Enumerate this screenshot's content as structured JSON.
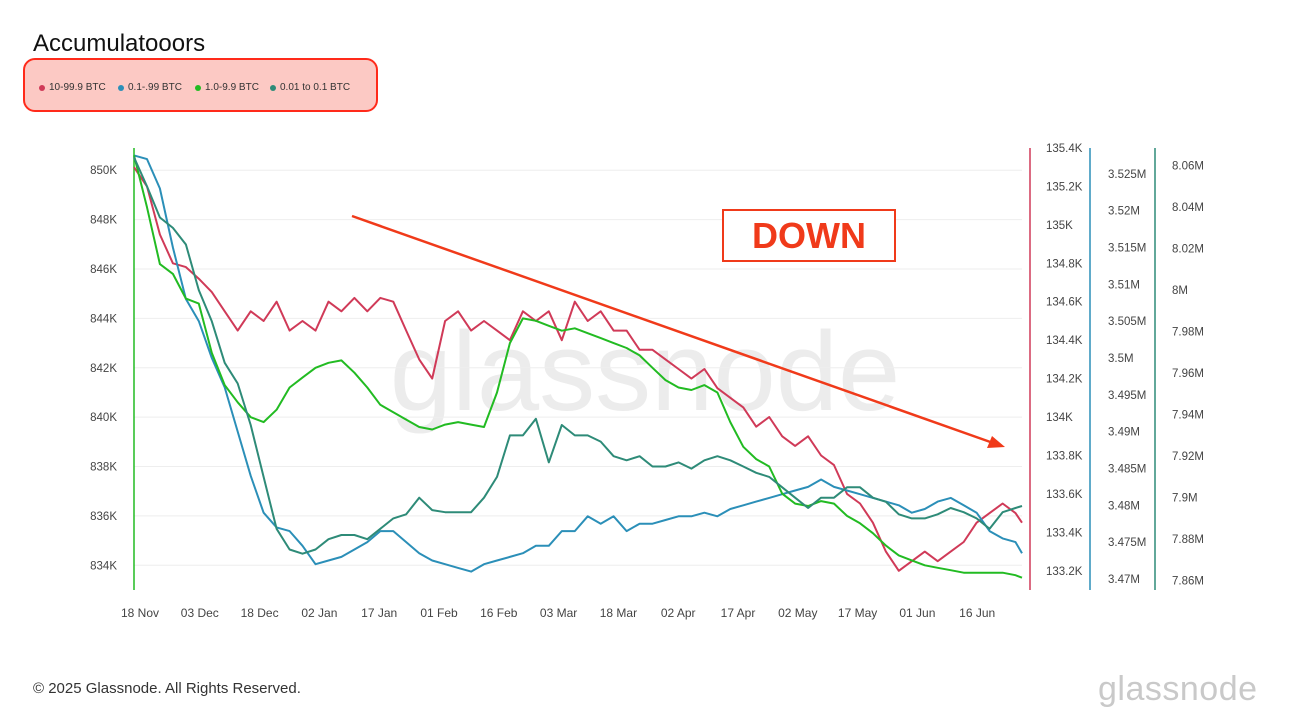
{
  "chart_data": {
    "type": "line",
    "title": "Accumulatooors",
    "x_ticks": [
      "18 Nov",
      "03 Dec",
      "18 Dec",
      "02 Jan",
      "17 Jan",
      "01 Feb",
      "16 Feb",
      "03 Mar",
      "18 Mar",
      "02 Apr",
      "17 Apr",
      "02 May",
      "17 May",
      "01 Jun",
      "16 Jun"
    ],
    "watermark": "glassnode",
    "annotation": "DOWN",
    "axes": {
      "left": {
        "ticks": [
          "834K",
          "836K",
          "838K",
          "840K",
          "842K",
          "844K",
          "846K",
          "848K",
          "850K"
        ],
        "range": [
          833000,
          850900
        ],
        "color": "#22bb22"
      },
      "right1": {
        "ticks": [
          "133.2K",
          "133.4K",
          "133.6K",
          "133.8K",
          "134K",
          "134.2K",
          "134.4K",
          "134.6K",
          "134.8K",
          "135K",
          "135.2K",
          "135.4K"
        ],
        "range": [
          133100,
          135400
        ],
        "color": "#d03a58"
      },
      "right2": {
        "ticks": [
          "3.47M",
          "3.475M",
          "3.48M",
          "3.485M",
          "3.49M",
          "3.495M",
          "3.5M",
          "3.505M",
          "3.51M",
          "3.515M",
          "3.52M",
          "3.525M"
        ],
        "range": [
          3.4685,
          3.5285
        ],
        "color": "#2b8fb8"
      },
      "right3": {
        "ticks": [
          "7.86M",
          "7.88M",
          "7.9M",
          "7.92M",
          "7.94M",
          "7.96M",
          "7.98M",
          "8M",
          "8.02M",
          "8.04M",
          "8.06M"
        ],
        "range": [
          7.8555,
          8.0685
        ],
        "color": "#2e8b78"
      }
    },
    "series": [
      {
        "name": "10-99.9 BTC",
        "color": "#d03a58",
        "axis": "right1",
        "points": [
          [
            0,
            135.3
          ],
          [
            2,
            135.2
          ],
          [
            4,
            134.95
          ],
          [
            6,
            134.8
          ],
          [
            8,
            134.78
          ],
          [
            10,
            134.72
          ],
          [
            12,
            134.65
          ],
          [
            14,
            134.55
          ],
          [
            16,
            134.45
          ],
          [
            18,
            134.55
          ],
          [
            20,
            134.5
          ],
          [
            22,
            134.6
          ],
          [
            24,
            134.45
          ],
          [
            26,
            134.5
          ],
          [
            28,
            134.45
          ],
          [
            30,
            134.6
          ],
          [
            32,
            134.55
          ],
          [
            34,
            134.62
          ],
          [
            36,
            134.55
          ],
          [
            38,
            134.62
          ],
          [
            40,
            134.6
          ],
          [
            42,
            134.45
          ],
          [
            44,
            134.3
          ],
          [
            46,
            134.2
          ],
          [
            48,
            134.5
          ],
          [
            50,
            134.55
          ],
          [
            52,
            134.45
          ],
          [
            54,
            134.5
          ],
          [
            56,
            134.45
          ],
          [
            58,
            134.4
          ],
          [
            60,
            134.55
          ],
          [
            62,
            134.5
          ],
          [
            64,
            134.55
          ],
          [
            66,
            134.4
          ],
          [
            68,
            134.6
          ],
          [
            70,
            134.5
          ],
          [
            72,
            134.55
          ],
          [
            74,
            134.45
          ],
          [
            76,
            134.45
          ],
          [
            78,
            134.35
          ],
          [
            80,
            134.35
          ],
          [
            82,
            134.3
          ],
          [
            84,
            134.25
          ],
          [
            86,
            134.2
          ],
          [
            88,
            134.25
          ],
          [
            90,
            134.15
          ],
          [
            92,
            134.1
          ],
          [
            94,
            134.05
          ],
          [
            96,
            133.95
          ],
          [
            98,
            134.0
          ],
          [
            100,
            133.9
          ],
          [
            102,
            133.85
          ],
          [
            104,
            133.9
          ],
          [
            106,
            133.8
          ],
          [
            108,
            133.75
          ],
          [
            110,
            133.6
          ],
          [
            112,
            133.55
          ],
          [
            114,
            133.45
          ],
          [
            116,
            133.3
          ],
          [
            118,
            133.2
          ],
          [
            120,
            133.25
          ],
          [
            122,
            133.3
          ],
          [
            124,
            133.25
          ],
          [
            126,
            133.3
          ],
          [
            128,
            133.35
          ],
          [
            130,
            133.45
          ],
          [
            132,
            133.5
          ],
          [
            134,
            133.55
          ],
          [
            136,
            133.5
          ],
          [
            137,
            133.45
          ]
        ]
      },
      {
        "name": "0.1-.99 BTC",
        "color": "#2b8fb8",
        "axis": "right2",
        "points": [
          [
            0,
            3.5275
          ],
          [
            2,
            3.527
          ],
          [
            4,
            3.523
          ],
          [
            6,
            3.515
          ],
          [
            8,
            3.508
          ],
          [
            10,
            3.505
          ],
          [
            12,
            3.5
          ],
          [
            14,
            3.496
          ],
          [
            16,
            3.49
          ],
          [
            18,
            3.484
          ],
          [
            20,
            3.479
          ],
          [
            22,
            3.477
          ],
          [
            24,
            3.4765
          ],
          [
            26,
            3.4745
          ],
          [
            28,
            3.472
          ],
          [
            30,
            3.4725
          ],
          [
            32,
            3.473
          ],
          [
            34,
            3.474
          ],
          [
            36,
            3.475
          ],
          [
            38,
            3.4765
          ],
          [
            40,
            3.4765
          ],
          [
            42,
            3.475
          ],
          [
            44,
            3.4735
          ],
          [
            46,
            3.4725
          ],
          [
            48,
            3.472
          ],
          [
            50,
            3.4715
          ],
          [
            52,
            3.471
          ],
          [
            54,
            3.472
          ],
          [
            56,
            3.4725
          ],
          [
            58,
            3.473
          ],
          [
            60,
            3.4735
          ],
          [
            62,
            3.4745
          ],
          [
            64,
            3.4745
          ],
          [
            66,
            3.4765
          ],
          [
            68,
            3.4765
          ],
          [
            70,
            3.4785
          ],
          [
            72,
            3.4775
          ],
          [
            74,
            3.4785
          ],
          [
            76,
            3.4765
          ],
          [
            78,
            3.4775
          ],
          [
            80,
            3.4775
          ],
          [
            82,
            3.478
          ],
          [
            84,
            3.4785
          ],
          [
            86,
            3.4785
          ],
          [
            88,
            3.479
          ],
          [
            90,
            3.4785
          ],
          [
            92,
            3.4795
          ],
          [
            94,
            3.48
          ],
          [
            96,
            3.4805
          ],
          [
            98,
            3.481
          ],
          [
            100,
            3.4815
          ],
          [
            102,
            3.482
          ],
          [
            104,
            3.4825
          ],
          [
            106,
            3.4835
          ],
          [
            108,
            3.4825
          ],
          [
            110,
            3.482
          ],
          [
            112,
            3.4815
          ],
          [
            114,
            3.481
          ],
          [
            116,
            3.4805
          ],
          [
            118,
            3.48
          ],
          [
            120,
            3.479
          ],
          [
            122,
            3.4795
          ],
          [
            124,
            3.4805
          ],
          [
            126,
            3.481
          ],
          [
            128,
            3.48
          ],
          [
            130,
            3.479
          ],
          [
            132,
            3.4765
          ],
          [
            134,
            3.4755
          ],
          [
            136,
            3.475
          ],
          [
            137,
            3.4735
          ]
        ]
      },
      {
        "name": "1.0-9.9 BTC",
        "color": "#22bb22",
        "axis": "left",
        "points": [
          [
            0,
            850.6
          ],
          [
            2,
            848.5
          ],
          [
            4,
            846.2
          ],
          [
            6,
            845.8
          ],
          [
            8,
            844.8
          ],
          [
            10,
            844.6
          ],
          [
            12,
            842.6
          ],
          [
            14,
            841.3
          ],
          [
            16,
            840.6
          ],
          [
            18,
            840.0
          ],
          [
            20,
            839.8
          ],
          [
            22,
            840.3
          ],
          [
            24,
            841.2
          ],
          [
            26,
            841.6
          ],
          [
            28,
            842.0
          ],
          [
            30,
            842.2
          ],
          [
            32,
            842.3
          ],
          [
            34,
            841.8
          ],
          [
            36,
            841.2
          ],
          [
            38,
            840.5
          ],
          [
            40,
            840.2
          ],
          [
            42,
            839.9
          ],
          [
            44,
            839.6
          ],
          [
            46,
            839.5
          ],
          [
            48,
            839.7
          ],
          [
            50,
            839.8
          ],
          [
            52,
            839.7
          ],
          [
            54,
            839.6
          ],
          [
            56,
            841.0
          ],
          [
            58,
            843.0
          ],
          [
            60,
            844.0
          ],
          [
            62,
            843.9
          ],
          [
            64,
            843.7
          ],
          [
            66,
            843.5
          ],
          [
            68,
            843.6
          ],
          [
            70,
            843.4
          ],
          [
            72,
            843.2
          ],
          [
            74,
            843.0
          ],
          [
            76,
            842.8
          ],
          [
            78,
            842.5
          ],
          [
            80,
            842.0
          ],
          [
            82,
            841.5
          ],
          [
            84,
            841.2
          ],
          [
            86,
            841.1
          ],
          [
            88,
            841.3
          ],
          [
            90,
            841.0
          ],
          [
            92,
            839.8
          ],
          [
            94,
            838.8
          ],
          [
            96,
            838.3
          ],
          [
            98,
            838.0
          ],
          [
            100,
            836.9
          ],
          [
            102,
            836.5
          ],
          [
            104,
            836.4
          ],
          [
            106,
            836.6
          ],
          [
            108,
            836.5
          ],
          [
            110,
            836.0
          ],
          [
            112,
            835.7
          ],
          [
            114,
            835.3
          ],
          [
            116,
            834.8
          ],
          [
            118,
            834.4
          ],
          [
            120,
            834.2
          ],
          [
            122,
            834.0
          ],
          [
            124,
            833.9
          ],
          [
            126,
            833.8
          ],
          [
            128,
            833.7
          ],
          [
            130,
            833.7
          ],
          [
            132,
            833.7
          ],
          [
            134,
            833.7
          ],
          [
            136,
            833.6
          ],
          [
            137,
            833.5
          ]
        ]
      },
      {
        "name": "0.01 to 0.1 BTC",
        "color": "#2e8b78",
        "axis": "right3",
        "points": [
          [
            0,
            8.064
          ],
          [
            2,
            8.05
          ],
          [
            4,
            8.035
          ],
          [
            6,
            8.03
          ],
          [
            8,
            8.022
          ],
          [
            10,
            8.0
          ],
          [
            12,
            7.985
          ],
          [
            14,
            7.965
          ],
          [
            16,
            7.955
          ],
          [
            18,
            7.935
          ],
          [
            20,
            7.91
          ],
          [
            22,
            7.885
          ],
          [
            24,
            7.875
          ],
          [
            26,
            7.873
          ],
          [
            28,
            7.875
          ],
          [
            30,
            7.88
          ],
          [
            32,
            7.882
          ],
          [
            34,
            7.882
          ],
          [
            36,
            7.88
          ],
          [
            38,
            7.885
          ],
          [
            40,
            7.89
          ],
          [
            42,
            7.892
          ],
          [
            44,
            7.9
          ],
          [
            46,
            7.894
          ],
          [
            48,
            7.893
          ],
          [
            50,
            7.893
          ],
          [
            52,
            7.893
          ],
          [
            54,
            7.9
          ],
          [
            56,
            7.91
          ],
          [
            58,
            7.93
          ],
          [
            60,
            7.93
          ],
          [
            62,
            7.938
          ],
          [
            64,
            7.917
          ],
          [
            66,
            7.935
          ],
          [
            68,
            7.93
          ],
          [
            70,
            7.93
          ],
          [
            72,
            7.927
          ],
          [
            74,
            7.92
          ],
          [
            76,
            7.918
          ],
          [
            78,
            7.92
          ],
          [
            80,
            7.915
          ],
          [
            82,
            7.915
          ],
          [
            84,
            7.917
          ],
          [
            86,
            7.914
          ],
          [
            88,
            7.918
          ],
          [
            90,
            7.92
          ],
          [
            92,
            7.918
          ],
          [
            94,
            7.915
          ],
          [
            96,
            7.912
          ],
          [
            98,
            7.91
          ],
          [
            100,
            7.905
          ],
          [
            102,
            7.9
          ],
          [
            104,
            7.895
          ],
          [
            106,
            7.9
          ],
          [
            108,
            7.9
          ],
          [
            110,
            7.905
          ],
          [
            112,
            7.905
          ],
          [
            114,
            7.9
          ],
          [
            116,
            7.898
          ],
          [
            118,
            7.892
          ],
          [
            120,
            7.89
          ],
          [
            122,
            7.89
          ],
          [
            124,
            7.892
          ],
          [
            126,
            7.895
          ],
          [
            128,
            7.893
          ],
          [
            130,
            7.89
          ],
          [
            132,
            7.885
          ],
          [
            134,
            7.893
          ],
          [
            136,
            7.895
          ],
          [
            137,
            7.896
          ]
        ]
      }
    ]
  },
  "footer": {
    "copyright": "© 2025 Glassnode. All Rights Reserved.",
    "brand": "glassnode"
  }
}
